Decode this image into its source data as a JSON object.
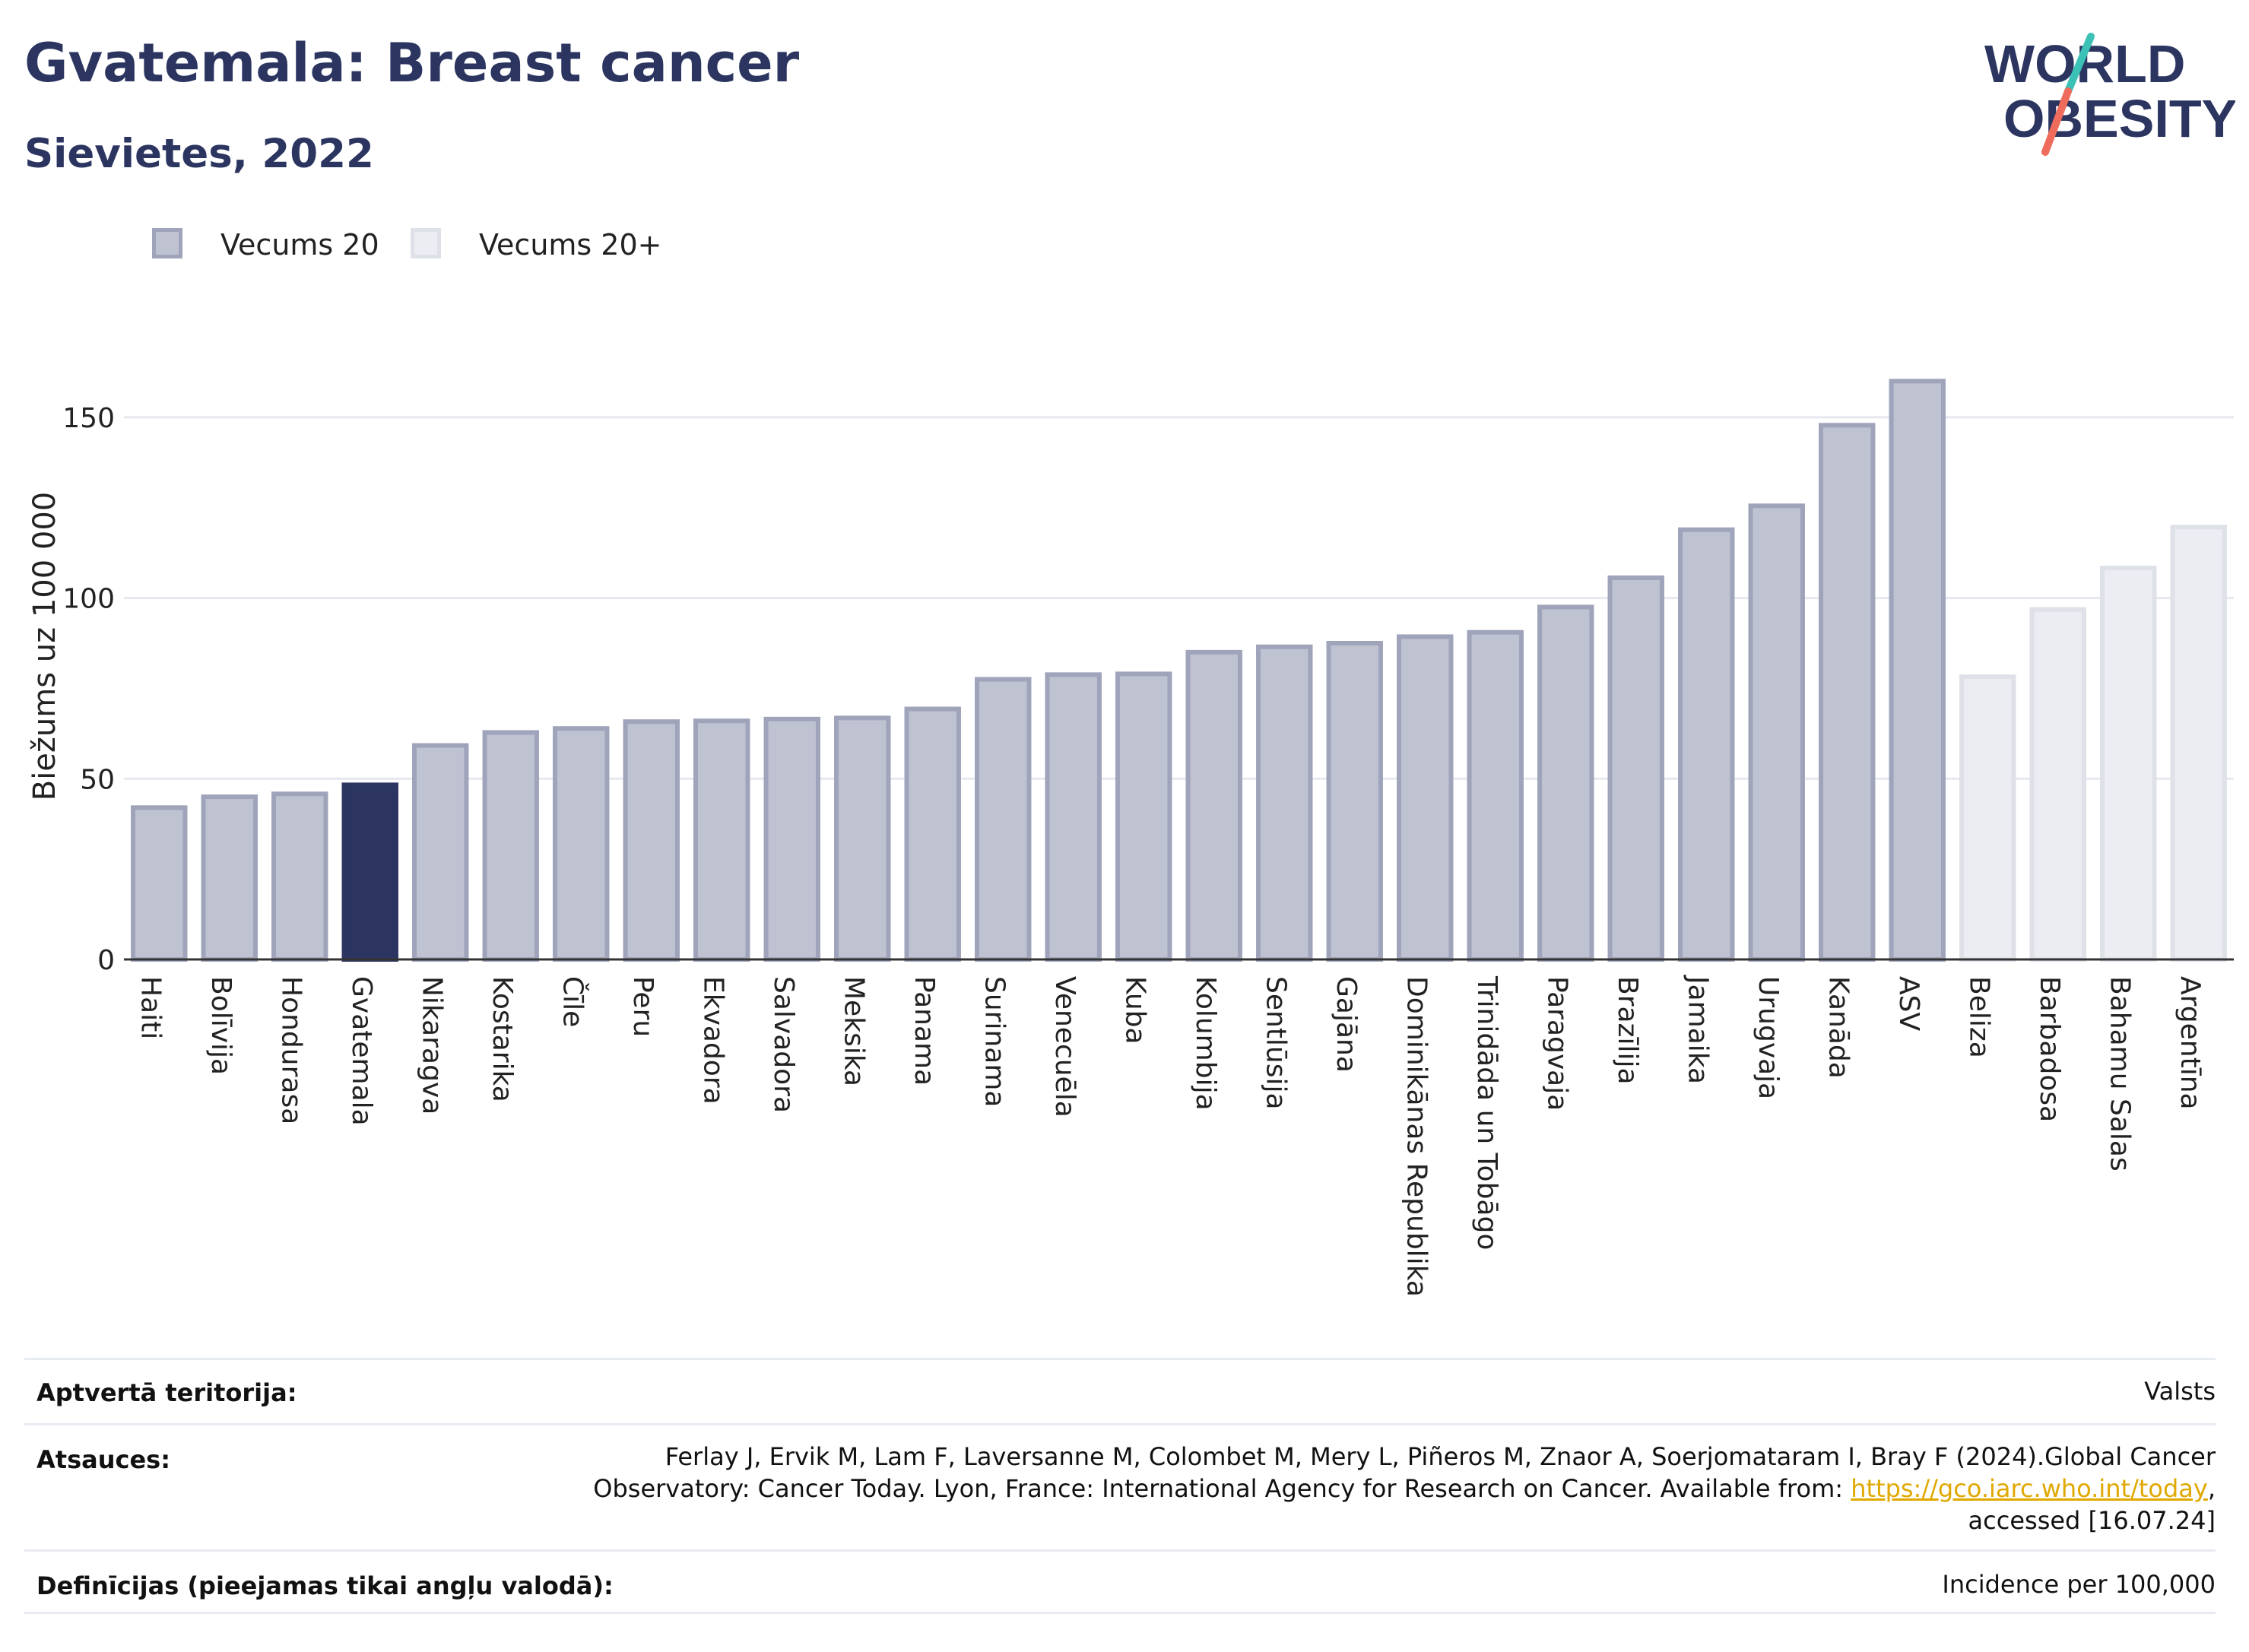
{
  "header": {
    "title": "Gvatemala: Breast cancer",
    "subtitle": "Sievietes, 2022"
  },
  "logo": {
    "line1": "WORLD",
    "line2": "OBESITY"
  },
  "legend": {
    "items": [
      {
        "label": "Vecums 20",
        "color": "#bfc2d1",
        "stroke": "#9fa4bb"
      },
      {
        "label": "Vecums 20+",
        "color": "#ecedf2",
        "stroke": "#dfe1e9"
      }
    ]
  },
  "chart_data": {
    "type": "bar",
    "ylabel": "Biežums uz 100 000",
    "ylim": [
      0,
      175
    ],
    "yticks": [
      0,
      50,
      100,
      150
    ],
    "highlight_color": "#2b3560",
    "categories": [
      "Haiti",
      "Bolīvija",
      "Hondurasa",
      "Gvatemala",
      "Nikaragva",
      "Kostarika",
      "Čīle",
      "Peru",
      "Ekvadora",
      "Salvadora",
      "Meksika",
      "Panama",
      "Surinama",
      "Venecuēla",
      "Kuba",
      "Kolumbija",
      "Sentlūsija",
      "Gajāna",
      "Dominikānas Republika",
      "Trinidāda un Tobāgo",
      "Paragvaja",
      "Brazīlija",
      "Jamaika",
      "Urugvaja",
      "Kanāda",
      "ASV",
      "Beliza",
      "Barbadosa",
      "Bahamu Salas",
      "Argentīna"
    ],
    "values": [
      42.0,
      45.0,
      45.8,
      48.3,
      59.2,
      62.8,
      63.9,
      65.8,
      66.0,
      66.5,
      66.8,
      69.3,
      77.5,
      78.8,
      79.0,
      85.0,
      86.5,
      87.5,
      89.3,
      90.5,
      97.5,
      105.6,
      118.9,
      125.5,
      147.8,
      160.0,
      78.2,
      96.8,
      108.3,
      119.6
    ],
    "groups": [
      "Vecums 20",
      "Vecums 20",
      "Vecums 20",
      "Vecums 20",
      "Vecums 20",
      "Vecums 20",
      "Vecums 20",
      "Vecums 20",
      "Vecums 20",
      "Vecums 20",
      "Vecums 20",
      "Vecums 20",
      "Vecums 20",
      "Vecums 20",
      "Vecums 20",
      "Vecums 20",
      "Vecums 20",
      "Vecums 20",
      "Vecums 20",
      "Vecums 20",
      "Vecums 20",
      "Vecums 20",
      "Vecums 20",
      "Vecums 20",
      "Vecums 20",
      "Vecums 20",
      "Vecums 20+",
      "Vecums 20+",
      "Vecums 20+",
      "Vecums 20+"
    ],
    "highlight": "Gvatemala",
    "grid": true
  },
  "meta": {
    "territory_label": "Aptvertā teritorija:",
    "territory_value": "Valsts",
    "refs_label": "Atsauces:",
    "refs_line1": "Ferlay J, Ervik M, Lam F, Laversanne M, Colombet M, Mery L, Piñeros M, Znaor A, Soerjomataram I, Bray F (2024).Global Cancer",
    "refs_line2_pre": "Observatory: Cancer Today. Lyon, France: International Agency for Research on Cancer. Available from: ",
    "refs_link": "https://gco.iarc.who.int/today",
    "refs_line2_post": ",",
    "refs_line3": "accessed [16.07.24]",
    "defs_label": "Definīcijas (pieejamas tikai angļu valodā):",
    "defs_value": "Incidence per 100,000"
  }
}
